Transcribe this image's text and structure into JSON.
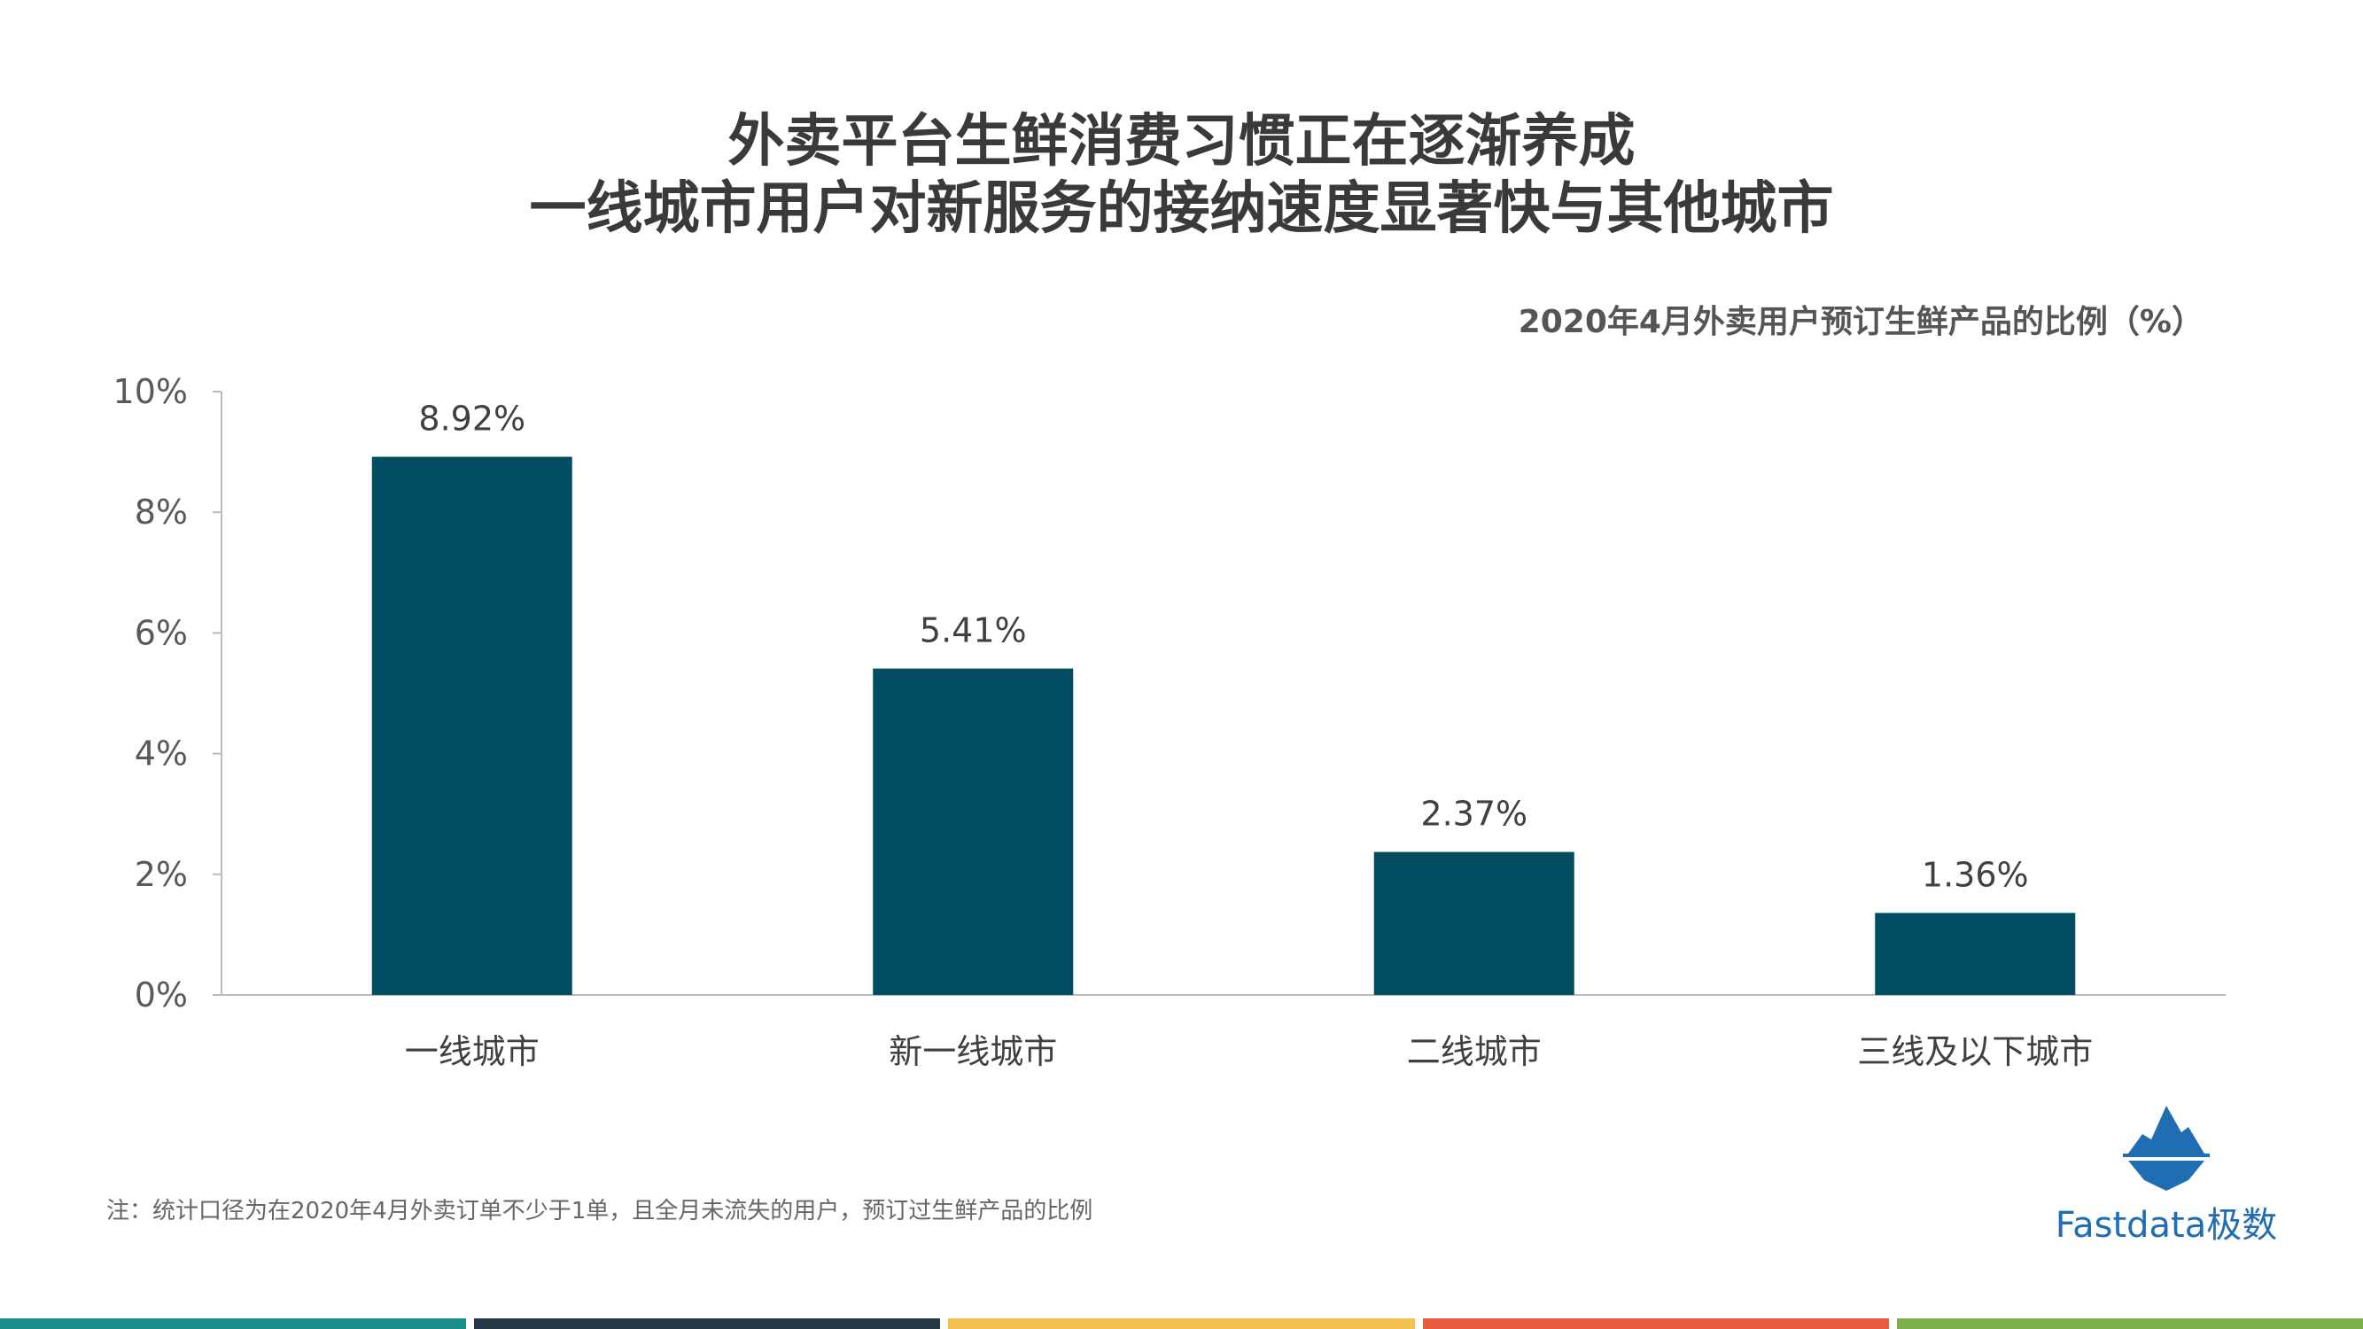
{
  "title": {
    "line1": "外卖平台生鲜消费习惯正在逐渐养成",
    "line2": "一线城市用户对新服务的接纳速度显著快与其他城市"
  },
  "subtitle": "2020年4月外卖用户预订生鲜产品的比例（%）",
  "note": "注：统计口径为在2020年4月外卖订单不少于1单，且全月未流失的用户，预订过生鲜产品的比例",
  "logo": {
    "icon": "iceberg-icon",
    "text": "Fastdata极数"
  },
  "colors": {
    "bar": "#004d62",
    "axis": "#bbbbbb",
    "text": "#404040",
    "bottom_bars": [
      "#1a8f8a",
      "#253746",
      "#f2c14e",
      "#e85d3f",
      "#7bb04a"
    ]
  },
  "chart_data": {
    "type": "bar",
    "title": "2020年4月外卖用户预订生鲜产品的比例（%）",
    "categories": [
      "一线城市",
      "新一线城市",
      "二线城市",
      "三线及以下城市"
    ],
    "values": [
      8.92,
      5.41,
      2.37,
      1.36
    ],
    "value_labels": [
      "8.92%",
      "5.41%",
      "2.37%",
      "1.36%"
    ],
    "yticks": [
      "0%",
      "2%",
      "4%",
      "6%",
      "8%",
      "10%"
    ],
    "ylim": [
      0,
      10
    ],
    "grid": false,
    "legend": "none"
  }
}
